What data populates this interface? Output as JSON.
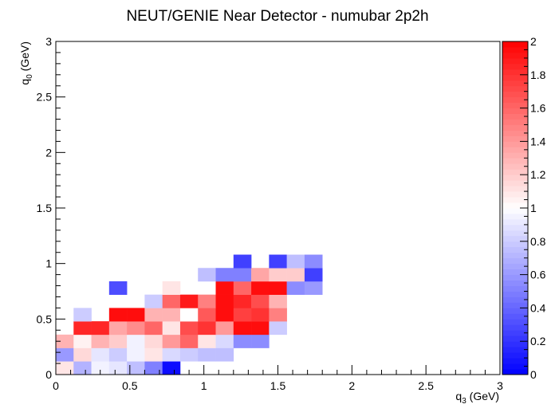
{
  "chart_data": {
    "type": "heatmap",
    "title": "NEUT/GENIE Near Detector - numubar 2p2h",
    "xlabel": "q",
    "xlabel_sub": "3",
    "xlabel_unit": " (GeV)",
    "ylabel": "q",
    "ylabel_sub": "0",
    "ylabel_unit": " (GeV)",
    "xlim": [
      0,
      3
    ],
    "ylim": [
      0,
      3
    ],
    "zlim": [
      0,
      2
    ],
    "bin_width": 0.12,
    "x_ticks": [
      {
        "value": 0,
        "label": "0"
      },
      {
        "value": 0.5,
        "label": "0.5"
      },
      {
        "value": 1,
        "label": "1"
      },
      {
        "value": 1.5,
        "label": "1.5"
      },
      {
        "value": 2,
        "label": "2"
      },
      {
        "value": 2.5,
        "label": "2.5"
      },
      {
        "value": 3,
        "label": "3"
      }
    ],
    "y_ticks": [
      {
        "value": 0,
        "label": "0"
      },
      {
        "value": 0.5,
        "label": "0.5"
      },
      {
        "value": 1,
        "label": "1"
      },
      {
        "value": 1.5,
        "label": "1.5"
      },
      {
        "value": 2,
        "label": "2"
      },
      {
        "value": 2.5,
        "label": "2.5"
      },
      {
        "value": 3,
        "label": "3"
      }
    ],
    "z_ticks": [
      {
        "value": 0,
        "label": "0"
      },
      {
        "value": 0.2,
        "label": "0.2"
      },
      {
        "value": 0.4,
        "label": "0.4"
      },
      {
        "value": 0.6,
        "label": "0.6"
      },
      {
        "value": 0.8,
        "label": "0.8"
      },
      {
        "value": 1,
        "label": "1"
      },
      {
        "value": 1.2,
        "label": "1.2"
      },
      {
        "value": 1.4,
        "label": "1.4"
      },
      {
        "value": 1.6,
        "label": "1.6"
      },
      {
        "value": 1.8,
        "label": "1.8"
      },
      {
        "value": 2,
        "label": "2"
      }
    ],
    "colors": {
      "low": "#0000ff",
      "mid": "#ffffff",
      "high": "#ff0000"
    },
    "cells": [
      [
        0.0,
        0.0,
        1.1
      ],
      [
        0.12,
        0.0,
        0.7
      ],
      [
        0.24,
        0.0,
        0.95
      ],
      [
        0.36,
        0.0,
        0.9
      ],
      [
        0.48,
        0.0,
        0.75
      ],
      [
        0.6,
        0.0,
        0.5
      ],
      [
        0.72,
        0.0,
        0.05
      ],
      [
        0.0,
        0.12,
        0.6
      ],
      [
        0.12,
        0.12,
        1.15
      ],
      [
        0.24,
        0.12,
        0.9
      ],
      [
        0.36,
        0.12,
        0.8
      ],
      [
        0.48,
        0.12,
        0.95
      ],
      [
        0.6,
        0.12,
        1.1
      ],
      [
        0.72,
        0.12,
        0.85
      ],
      [
        0.84,
        0.12,
        0.8
      ],
      [
        0.96,
        0.12,
        0.75
      ],
      [
        1.08,
        0.12,
        0.75
      ],
      [
        0.0,
        0.24,
        1.3
      ],
      [
        0.12,
        0.24,
        1.05
      ],
      [
        0.24,
        0.24,
        1.3
      ],
      [
        0.36,
        0.24,
        1.2
      ],
      [
        0.48,
        0.24,
        0.95
      ],
      [
        0.6,
        0.24,
        1.15
      ],
      [
        0.72,
        0.24,
        1.4
      ],
      [
        0.84,
        0.24,
        1.6
      ],
      [
        0.96,
        0.24,
        1.1
      ],
      [
        1.08,
        0.24,
        0.85
      ],
      [
        1.2,
        0.24,
        0.55
      ],
      [
        1.32,
        0.24,
        0.55
      ],
      [
        0.12,
        0.36,
        1.85
      ],
      [
        0.24,
        0.36,
        1.85
      ],
      [
        0.36,
        0.36,
        1.35
      ],
      [
        0.48,
        0.36,
        1.45
      ],
      [
        0.6,
        0.36,
        1.6
      ],
      [
        0.72,
        0.36,
        1.1
      ],
      [
        0.84,
        0.36,
        1.7
      ],
      [
        0.96,
        0.36,
        1.8
      ],
      [
        1.08,
        0.36,
        1.4
      ],
      [
        1.2,
        0.36,
        1.95
      ],
      [
        1.32,
        0.36,
        1.95
      ],
      [
        1.44,
        0.36,
        0.8
      ],
      [
        0.12,
        0.48,
        0.8
      ],
      [
        0.36,
        0.48,
        1.95
      ],
      [
        0.48,
        0.48,
        1.95
      ],
      [
        0.6,
        0.48,
        1.3
      ],
      [
        0.72,
        0.48,
        1.3
      ],
      [
        0.84,
        0.48,
        1.0
      ],
      [
        0.96,
        0.48,
        1.65
      ],
      [
        1.08,
        0.48,
        1.95
      ],
      [
        1.2,
        0.48,
        1.75
      ],
      [
        1.32,
        0.48,
        1.8
      ],
      [
        1.44,
        0.48,
        1.5
      ],
      [
        0.6,
        0.6,
        0.8
      ],
      [
        0.72,
        0.6,
        1.6
      ],
      [
        0.84,
        0.6,
        1.9
      ],
      [
        0.96,
        0.6,
        1.5
      ],
      [
        1.08,
        0.6,
        1.95
      ],
      [
        1.2,
        0.6,
        1.85
      ],
      [
        1.32,
        0.6,
        1.7
      ],
      [
        1.44,
        0.6,
        1.3
      ],
      [
        0.36,
        0.72,
        0.3
      ],
      [
        0.72,
        0.72,
        1.1
      ],
      [
        1.08,
        0.72,
        1.95
      ],
      [
        1.2,
        0.72,
        1.6
      ],
      [
        1.32,
        0.72,
        1.95
      ],
      [
        1.44,
        0.72,
        1.95
      ],
      [
        1.56,
        0.72,
        0.55
      ],
      [
        1.68,
        0.72,
        0.6
      ],
      [
        0.96,
        0.84,
        0.75
      ],
      [
        1.08,
        0.84,
        0.5
      ],
      [
        1.2,
        0.84,
        0.5
      ],
      [
        1.32,
        0.84,
        1.35
      ],
      [
        1.44,
        0.84,
        1.2
      ],
      [
        1.56,
        0.84,
        1.2
      ],
      [
        1.68,
        0.84,
        0.25
      ],
      [
        1.2,
        0.96,
        0.25
      ],
      [
        1.44,
        0.96,
        0.25
      ],
      [
        1.56,
        0.96,
        0.75
      ],
      [
        1.68,
        0.96,
        0.55
      ]
    ]
  }
}
